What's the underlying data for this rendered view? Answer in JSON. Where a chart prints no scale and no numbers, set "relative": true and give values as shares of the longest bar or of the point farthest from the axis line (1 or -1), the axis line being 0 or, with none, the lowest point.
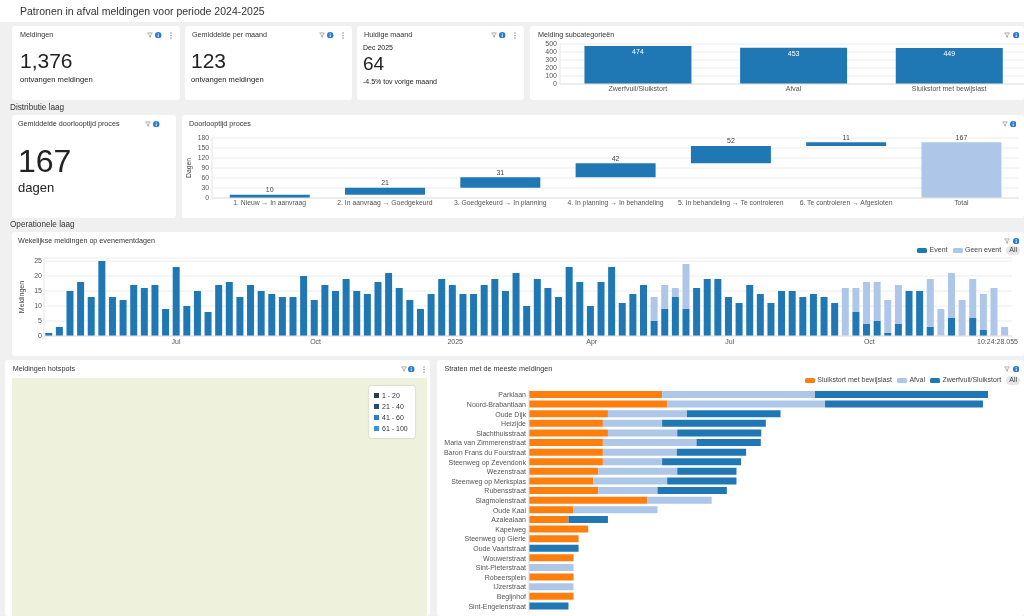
{
  "chart_data": [
    {
      "type": "other",
      "title": "Patronen in afval meldingen voor periode 2024-2025"
    },
    {
      "type": "other",
      "title": "Meldingen",
      "annotations": [
        "1,376",
        "ontvangen meldingen"
      ]
    },
    {
      "type": "other",
      "title": "Gemiddelde per maand",
      "annotations": [
        "123",
        "ontvangen meldingen"
      ]
    },
    {
      "type": "other",
      "title": "Huidige maand",
      "annotations": [
        "Dec 2025",
        "64",
        "-4.5% tov vorige maand"
      ]
    },
    {
      "type": "bar",
      "title": "Melding subcategorieën",
      "categories": [
        "Zwerfvuil/Sluikstort",
        "Afval",
        "Sluikstort met bewijslast"
      ],
      "values": [
        474,
        453,
        449
      ],
      "color": "#1f77b4",
      "ylim": [
        0,
        500
      ],
      "yticks": [
        0,
        100,
        200,
        300,
        400,
        500
      ],
      "grid": "y",
      "data_labels": true
    },
    {
      "type": "other",
      "title": "Distributie laag"
    },
    {
      "type": "other",
      "title": "Gemiddelde doorlooptijd proces",
      "annotations": [
        "167",
        "dagen"
      ]
    },
    {
      "type": "bar",
      "title": "Doorlooptijd proces",
      "ylabel": "Dagen",
      "categories": [
        "1. Nieuw → In aanvraag",
        "2. In aanvraag → Goedgekeurd",
        "3. Goedgekeurd → In planning",
        "4. In planning → In behandeling",
        "5. In behandeling → Te controleren",
        "6. Te controleren → Afgesloten",
        "Total"
      ],
      "values": [
        10,
        21,
        31,
        42,
        52,
        11,
        167
      ],
      "base": [
        0,
        10,
        31,
        62,
        104,
        156,
        0
      ],
      "colors": [
        "#1f77b4",
        "#1f77b4",
        "#1f77b4",
        "#1f77b4",
        "#1f77b4",
        "#1f77b4",
        "#aec7e8"
      ],
      "ylim": [
        0,
        180
      ],
      "yticks": [
        0,
        30,
        60,
        90,
        120,
        150,
        180
      ],
      "grid": "y",
      "data_labels": true
    },
    {
      "type": "other",
      "title": "Operationele laag"
    },
    {
      "type": "bar",
      "title": "Wekelijkse meldingen op evenementdagen",
      "ylabel": "Meldingen",
      "stacked": true,
      "legend": "top right",
      "annotations": [
        "All"
      ],
      "x": [
        "2024-04-08",
        "2024-04-15",
        "2024-04-22",
        "2024-04-29",
        "2024-05-06",
        "2024-05-13",
        "2024-05-20",
        "2024-05-27",
        "2024-06-03",
        "2024-06-10",
        "2024-06-17",
        "2024-06-24",
        "2024-07-01",
        "2024-07-08",
        "2024-07-15",
        "2024-07-22",
        "2024-07-29",
        "2024-08-05",
        "2024-08-12",
        "2024-08-19",
        "2024-08-26",
        "2024-09-02",
        "2024-09-09",
        "2024-09-16",
        "2024-09-23",
        "2024-09-30",
        "2024-10-07",
        "2024-10-14",
        "2024-10-21",
        "2024-10-28",
        "2024-11-04",
        "2024-11-11",
        "2024-11-18",
        "2024-11-25",
        "2024-12-02",
        "2024-12-09",
        "2024-12-16",
        "2024-12-23",
        "2024-12-30",
        "2025-01-06",
        "2025-01-13",
        "2025-01-20",
        "2025-01-27",
        "2025-02-03",
        "2025-02-10",
        "2025-02-17",
        "2025-02-24",
        "2025-03-03",
        "2025-03-10",
        "2025-03-17",
        "2025-03-24",
        "2025-03-31",
        "2025-04-07",
        "2025-04-14",
        "2025-04-21",
        "2025-04-28",
        "2025-05-05",
        "2025-05-12",
        "2025-05-19",
        "2025-05-26",
        "2025-06-02",
        "2025-06-09",
        "2025-06-16",
        "2025-06-23",
        "2025-06-30",
        "2025-07-07",
        "2025-07-14",
        "2025-07-21",
        "2025-07-28",
        "2025-08-04",
        "2025-08-11",
        "2025-08-18",
        "2025-08-25",
        "2025-09-01",
        "2025-09-08",
        "2025-09-15",
        "2025-09-22",
        "2025-09-29",
        "2025-10-06",
        "2025-10-13",
        "2025-10-20",
        "2025-10-27",
        "2025-11-03",
        "2025-11-10",
        "2025-11-17",
        "2025-11-24",
        "2025-12-01",
        "2025-12-08",
        "2025-12-15",
        "2025-12-22",
        "2025-12-29"
      ],
      "series": [
        {
          "name": "Event",
          "color": "#1f77b4",
          "values": [
            1,
            3,
            15,
            18,
            13,
            25,
            13,
            12,
            17,
            16,
            17,
            9,
            23,
            10,
            15,
            8,
            17,
            18,
            13,
            17,
            15,
            14,
            13,
            13,
            20,
            12,
            17,
            15,
            19,
            15,
            14,
            18,
            21,
            16,
            12,
            9,
            14,
            19,
            17,
            14,
            14,
            17,
            19,
            15,
            21,
            10,
            19,
            16,
            13,
            23,
            18,
            10,
            18,
            23,
            11,
            14,
            17,
            5,
            9,
            13,
            9,
            16,
            19,
            19,
            13,
            11,
            17,
            14,
            11,
            15,
            15,
            13,
            14,
            13,
            11,
            null,
            8,
            4,
            5,
            1,
            4,
            15,
            15,
            3,
            null,
            6,
            null,
            6,
            2,
            null,
            null
          ]
        },
        {
          "name": "Geen event",
          "color": "#aec7e8",
          "values": [
            null,
            null,
            null,
            null,
            null,
            null,
            null,
            null,
            null,
            null,
            null,
            null,
            null,
            null,
            null,
            null,
            null,
            null,
            null,
            null,
            null,
            null,
            null,
            null,
            null,
            null,
            null,
            null,
            null,
            null,
            null,
            null,
            null,
            null,
            null,
            null,
            null,
            null,
            null,
            null,
            null,
            null,
            null,
            null,
            null,
            null,
            null,
            null,
            null,
            null,
            null,
            null,
            null,
            null,
            null,
            null,
            null,
            8,
            8,
            3,
            15,
            null,
            null,
            null,
            null,
            null,
            null,
            null,
            null,
            null,
            null,
            null,
            null,
            null,
            null,
            16,
            8,
            14,
            13,
            11,
            13,
            null,
            null,
            16,
            9,
            15,
            12,
            13,
            12,
            16,
            3
          ]
        }
      ],
      "xlim": [
        "2024-04-05",
        "2026-01-03"
      ],
      "xticks": [
        {
          "value": "2024-07-01",
          "label": "Jul"
        },
        {
          "value": "2024-10-01",
          "label": "Oct"
        },
        {
          "value": "2025-01-01",
          "label": "2025"
        },
        {
          "value": "2025-04-01",
          "label": "Apr"
        },
        {
          "value": "2025-07-01",
          "label": "Jul"
        },
        {
          "value": "2025-10-01",
          "label": "Oct"
        },
        {
          "value": "2025-12-24T10:24",
          "label": "10:24:28.055"
        }
      ],
      "ylim": [
        0,
        26
      ],
      "yticks": [
        0,
        5,
        10,
        15,
        20,
        25
      ],
      "grid": "y"
    },
    {
      "type": "other",
      "title": "Meldingen hotspots",
      "categories": [
        "1 - 20",
        "21 - 40",
        "41 - 60",
        "61 - 100"
      ],
      "colors": [
        "#2e3b4e",
        "#2a4a6e",
        "#2f7ac4",
        "#3c8fe0"
      ]
    },
    {
      "type": "bar",
      "orientation": "horizontal",
      "stacked": true,
      "relative": true,
      "title": "Straten met de meeste meldingen",
      "legend": "top right",
      "annotations": [
        "All"
      ],
      "categories": [
        "Parklaan",
        "Noord-Brabantlaan",
        "Oude Dijk",
        "Heizijde",
        "Slachthuisstraat",
        "Maria van Zimmerenstraat",
        "Baron Frans du Fourstraat",
        "Steenweg op Zevendonk",
        "Wezenstraat",
        "Steenweg op Merksplas",
        "Rubensstraat",
        "Slagmolenstraat",
        "Oude Kaai",
        "Azalealaan",
        "Kapelweg",
        "Steenweg op Gierle",
        "Oude Vaartstraat",
        "Wouwerstraat",
        "Sint-Pieterstraat",
        "Robeersplein",
        "IJzerstraat",
        "Begijnhof",
        "Sint-Engelenstraat"
      ],
      "series": [
        {
          "name": "Sluikstort met bewijslast",
          "color": "#ff7f0e",
          "values": [
            0.29,
            0.301,
            0.172,
            0.161,
            0.172,
            0.161,
            0.161,
            0.161,
            0.151,
            0.14,
            0.151,
            0.258,
            0.097,
            0.086,
            0.129,
            0.108,
            null,
            0.097,
            null,
            0.097,
            null,
            0.097,
            null
          ]
        },
        {
          "name": "Afval",
          "color": "#aec7e8",
          "values": [
            0.333,
            0.344,
            0.172,
            0.129,
            0.151,
            0.204,
            0.161,
            0.129,
            0.172,
            0.161,
            0.129,
            0.14,
            0.183,
            null,
            null,
            null,
            null,
            null,
            0.097,
            null,
            0.097,
            null,
            null
          ]
        },
        {
          "name": "Zwerfvuil/Sluikstort",
          "color": "#1f77b4",
          "values": [
            0.377,
            0.344,
            0.204,
            0.226,
            0.183,
            0.14,
            0.151,
            0.172,
            0.129,
            0.151,
            0.151,
            null,
            null,
            0.086,
            null,
            null,
            0.108,
            null,
            null,
            null,
            null,
            null,
            0.086
          ]
        }
      ]
    }
  ]
}
